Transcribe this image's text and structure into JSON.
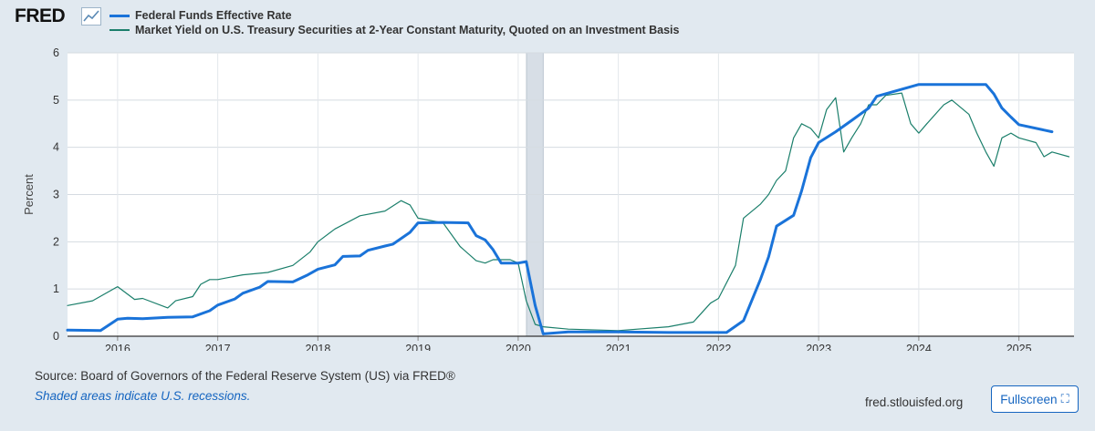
{
  "header": {
    "logo_text": "FRED",
    "logo_icon": "chart-line-icon"
  },
  "footer": {
    "source": "Source: Board of Governors of the Federal Reserve System (US) via FRED®",
    "recession_note": "Shaded areas indicate U.S. recessions.",
    "site": "fred.stlouisfed.org",
    "fullscreen_label": "Fullscreen",
    "fullscreen_icon": "fullscreen-icon"
  },
  "colors": {
    "background": "#e1e9f0",
    "plot_bg": "#ffffff",
    "series_1": "#1a73d9",
    "series_2": "#1b7f6b",
    "recession": "#d7dee6"
  },
  "chart_data": {
    "type": "line",
    "title": "",
    "xlabel": "",
    "ylabel": "Percent",
    "x_range": [
      2015.5,
      2025.55
    ],
    "ylim": [
      0,
      6
    ],
    "yticks": [
      0,
      1,
      2,
      3,
      4,
      5,
      6
    ],
    "xticks": [
      "2016",
      "2017",
      "2018",
      "2019",
      "2020",
      "2021",
      "2022",
      "2023",
      "2024",
      "2025"
    ],
    "grid": true,
    "legend_position": "top-left",
    "recession_shading": [
      [
        2020.083,
        2020.25
      ]
    ],
    "series": [
      {
        "name": "Federal Funds Effective Rate",
        "x": [
          2015.5,
          2015.83,
          2016.0,
          2016.1,
          2016.25,
          2016.5,
          2016.75,
          2016.92,
          2017.0,
          2017.17,
          2017.25,
          2017.42,
          2017.5,
          2017.75,
          2017.9,
          2018.0,
          2018.17,
          2018.25,
          2018.42,
          2018.5,
          2018.67,
          2018.75,
          2018.92,
          2019.0,
          2019.25,
          2019.5,
          2019.58,
          2019.67,
          2019.75,
          2019.83,
          2020.0,
          2020.08,
          2020.17,
          2020.25,
          2020.5,
          2021.0,
          2021.5,
          2022.0,
          2022.08,
          2022.25,
          2022.42,
          2022.5,
          2022.58,
          2022.75,
          2022.83,
          2022.92,
          2023.0,
          2023.17,
          2023.33,
          2023.5,
          2023.58,
          2024.0,
          2024.5,
          2024.67,
          2024.75,
          2024.83,
          2024.92,
          2025.0,
          2025.33
        ],
        "values": [
          0.13,
          0.12,
          0.36,
          0.38,
          0.37,
          0.4,
          0.41,
          0.54,
          0.66,
          0.79,
          0.91,
          1.04,
          1.16,
          1.15,
          1.3,
          1.42,
          1.51,
          1.69,
          1.7,
          1.82,
          1.91,
          1.95,
          2.2,
          2.4,
          2.41,
          2.4,
          2.13,
          2.04,
          1.83,
          1.55,
          1.55,
          1.58,
          0.65,
          0.05,
          0.09,
          0.09,
          0.08,
          0.08,
          0.08,
          0.33,
          1.21,
          1.68,
          2.33,
          2.56,
          3.08,
          3.78,
          4.1,
          4.33,
          4.57,
          4.83,
          5.08,
          5.33,
          5.33,
          5.33,
          5.13,
          4.83,
          4.64,
          4.48,
          4.33
        ]
      },
      {
        "name": "Market Yield on U.S. Treasury Securities at 2-Year Constant Maturity, Quoted on an Investment Basis",
        "x": [
          2015.5,
          2015.75,
          2016.0,
          2016.17,
          2016.25,
          2016.5,
          2016.58,
          2016.75,
          2016.83,
          2016.92,
          2017.0,
          2017.25,
          2017.5,
          2017.75,
          2017.92,
          2018.0,
          2018.17,
          2018.42,
          2018.67,
          2018.83,
          2018.92,
          2019.0,
          2019.25,
          2019.42,
          2019.58,
          2019.67,
          2019.75,
          2019.92,
          2020.0,
          2020.08,
          2020.17,
          2020.25,
          2020.5,
          2021.0,
          2021.5,
          2021.75,
          2021.92,
          2022.0,
          2022.17,
          2022.25,
          2022.42,
          2022.5,
          2022.58,
          2022.67,
          2022.75,
          2022.83,
          2022.92,
          2023.0,
          2023.08,
          2023.17,
          2023.25,
          2023.33,
          2023.42,
          2023.5,
          2023.58,
          2023.67,
          2023.83,
          2023.92,
          2024.0,
          2024.08,
          2024.25,
          2024.33,
          2024.5,
          2024.58,
          2024.67,
          2024.75,
          2024.83,
          2024.92,
          2025.0,
          2025.17,
          2025.25,
          2025.33,
          2025.5
        ],
        "values": [
          0.65,
          0.75,
          1.05,
          0.78,
          0.8,
          0.6,
          0.75,
          0.84,
          1.1,
          1.2,
          1.2,
          1.3,
          1.35,
          1.5,
          1.78,
          2.0,
          2.27,
          2.55,
          2.65,
          2.87,
          2.78,
          2.5,
          2.4,
          1.9,
          1.6,
          1.55,
          1.62,
          1.62,
          1.55,
          0.75,
          0.25,
          0.2,
          0.15,
          0.12,
          0.2,
          0.3,
          0.7,
          0.8,
          1.5,
          2.5,
          2.8,
          3.0,
          3.3,
          3.5,
          4.2,
          4.5,
          4.4,
          4.2,
          4.8,
          5.05,
          3.9,
          4.2,
          4.5,
          4.9,
          4.9,
          5.1,
          5.15,
          4.5,
          4.3,
          4.5,
          4.9,
          5.0,
          4.7,
          4.3,
          3.9,
          3.6,
          4.2,
          4.3,
          4.2,
          4.1,
          3.8,
          3.9,
          3.8
        ]
      }
    ]
  }
}
